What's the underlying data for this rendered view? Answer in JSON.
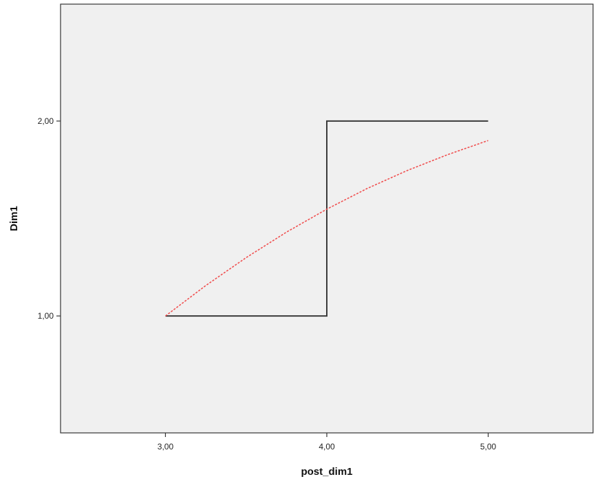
{
  "chart_data": {
    "type": "line",
    "title": "",
    "xlabel": "post_dim1",
    "ylabel": "Dim1",
    "xlim": [
      2.35,
      5.65
    ],
    "ylim": [
      0.4,
      2.6
    ],
    "x_ticks": [
      3,
      4,
      5
    ],
    "y_ticks": [
      1,
      2
    ],
    "x_tick_labels": [
      "3,00",
      "4,00",
      "5,00"
    ],
    "y_tick_labels": [
      "1,00",
      "2,00"
    ],
    "grid": false,
    "legend": "none",
    "series": [
      {
        "style": "step",
        "color": "#3a3a3a",
        "points": [
          [
            3,
            1
          ],
          [
            4,
            1
          ],
          [
            4,
            2
          ],
          [
            5,
            2
          ]
        ]
      },
      {
        "style": "dotted curve",
        "color": "#f05050",
        "points": [
          [
            3,
            1
          ],
          [
            3.25,
            1.156
          ],
          [
            3.5,
            1.299
          ],
          [
            3.75,
            1.43
          ],
          [
            4,
            1.548
          ],
          [
            4.25,
            1.654
          ],
          [
            4.5,
            1.747
          ],
          [
            4.75,
            1.828
          ],
          [
            5,
            1.9
          ]
        ]
      }
    ]
  },
  "colors": {
    "plot_background": "#f0f0f0",
    "frame": "#333333"
  }
}
